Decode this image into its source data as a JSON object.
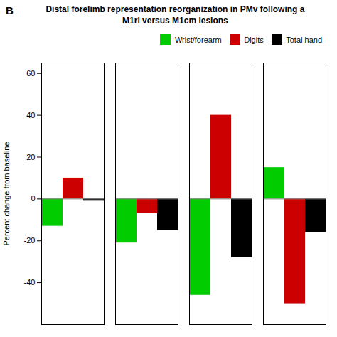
{
  "chart_data": {
    "type": "bar",
    "title": "Distal forelimb representation reorganization in PMv following a\nM1rl versus M1cm lesions",
    "ylabel": "Percent change from baseline",
    "categories": [
      null,
      null,
      null,
      null
    ],
    "series": [
      {
        "name": "Wrist/forearm",
        "color": "#00cc00",
        "values": [
          -13,
          -21,
          -46,
          15
        ]
      },
      {
        "name": "Digits",
        "color": "#cc0000",
        "values": [
          10,
          -7,
          40,
          -50
        ]
      },
      {
        "name": "Total hand",
        "color": "#000000",
        "values": [
          -1,
          -15,
          -28,
          -16
        ]
      }
    ],
    "ylim": [
      -60,
      65
    ],
    "yticks": [
      -40,
      -20,
      0,
      20,
      40,
      60
    ],
    "legend": "upper right",
    "grid": false,
    "tick_labels": "y",
    "annotations": [
      "B"
    ]
  }
}
